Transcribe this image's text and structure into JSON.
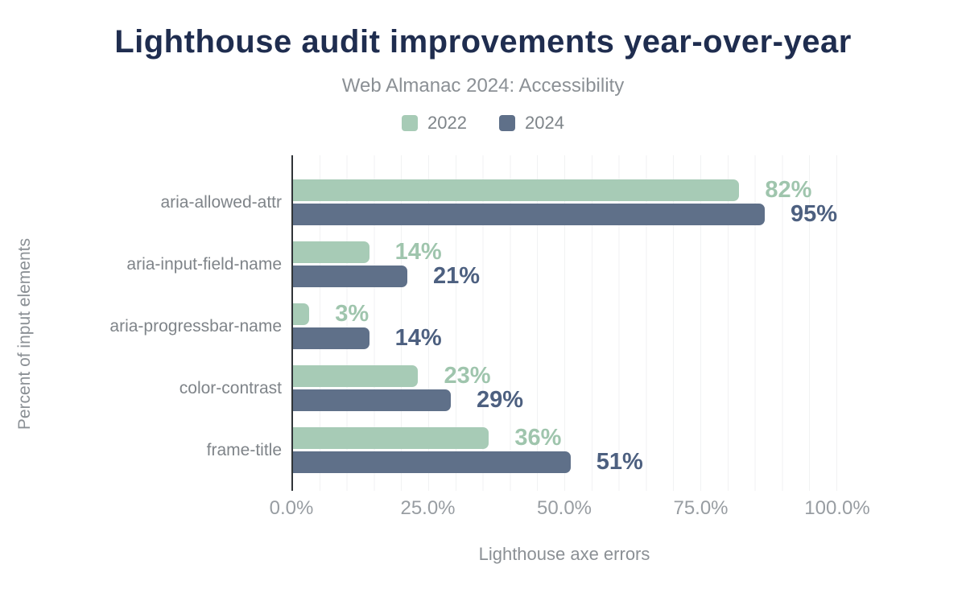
{
  "title": "Lighthouse audit improvements year-over-year",
  "subtitle": "Web Almanac 2024: Accessibility",
  "colors": {
    "background": "#ffffff",
    "title_text": "#1f2d4f",
    "subtitle_text": "#8b9095",
    "category_text": "#7f8489",
    "tick_text": "#989da2",
    "axis_line": "#303438",
    "gridline": "#f1f2f3",
    "series_2022": "#a7cbb6",
    "series_2024": "#5f7089"
  },
  "chart_data": {
    "type": "bar",
    "orientation": "horizontal",
    "title": "Lighthouse audit improvements year-over-year",
    "subtitle": "Web Almanac 2024: Accessibility",
    "categories": [
      "aria-allowed-attr",
      "aria-input-field-name",
      "aria-progressbar-name",
      "color-contrast",
      "frame-title"
    ],
    "series": [
      {
        "name": "2022",
        "color": "#a7cbb6",
        "label_color": "#9fc5ad",
        "values": [
          82,
          14,
          3,
          23,
          36
        ],
        "labels": [
          "82%",
          "14%",
          "3%",
          "23%",
          "36%"
        ]
      },
      {
        "name": "2024",
        "color": "#5f7089",
        "label_color": "#4d6080",
        "values": [
          95,
          21,
          14,
          29,
          51
        ],
        "labels": [
          "95%",
          "21%",
          "14%",
          "29%",
          "51%"
        ]
      }
    ],
    "xlabel": "Lighthouse axe errors",
    "ylabel": "Percent of input elements",
    "xlim": [
      0,
      100
    ],
    "xticks": [
      {
        "pos": 0,
        "label": "0.0%"
      },
      {
        "pos": 25,
        "label": "25.0%"
      },
      {
        "pos": 50,
        "label": "50.0%"
      },
      {
        "pos": 75,
        "label": "75.0%"
      },
      {
        "pos": 100,
        "label": "100.0%"
      }
    ],
    "grid": {
      "vertical_interval_percent": 5,
      "horizontal": false
    },
    "legend_position": "top"
  }
}
